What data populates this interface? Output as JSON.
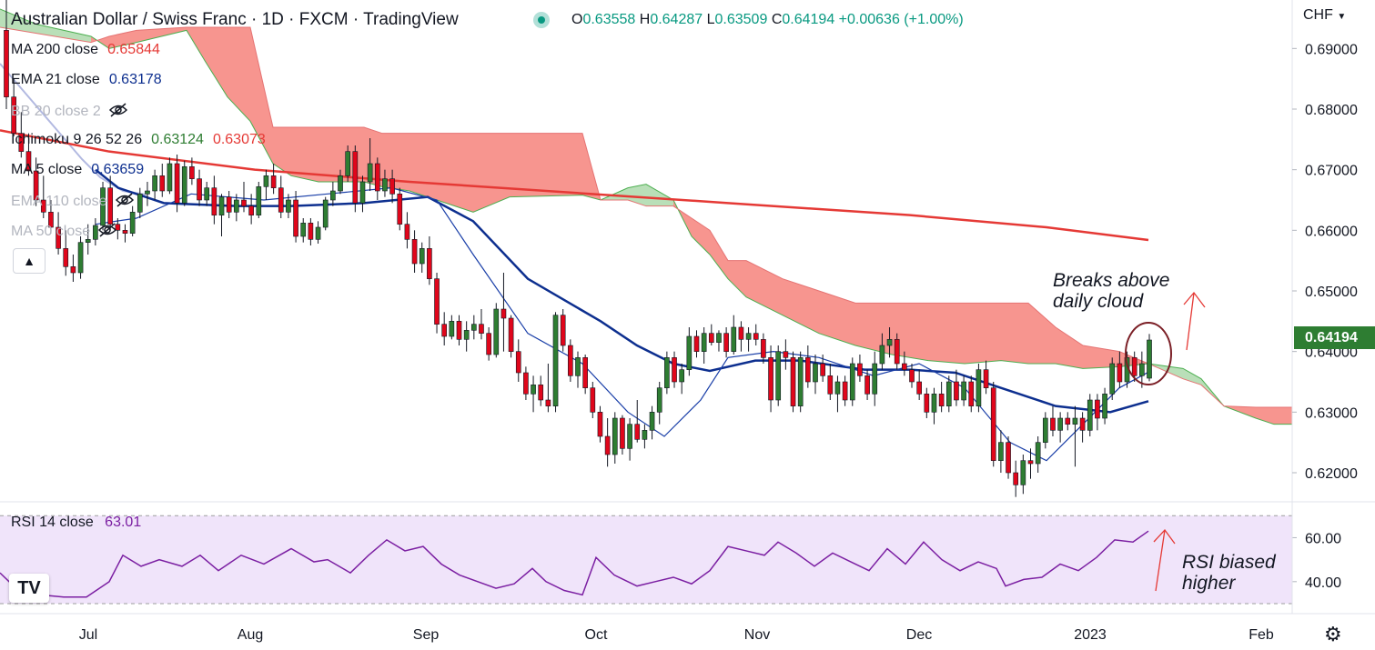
{
  "header": {
    "title": "Australian Dollar / Swiss Franc · 1D · FXCM · TradingView",
    "ohlc": {
      "open_label": "O",
      "open": "0.63558",
      "high_label": "H",
      "high": "0.64287",
      "low_label": "L",
      "low": "0.63509",
      "close_label": "C",
      "close": "0.64194",
      "change": "+0.00636 (+1.00%)"
    }
  },
  "legend": {
    "ma200": {
      "label": "MA 200 close",
      "value": "0.65844",
      "color": "#e53935"
    },
    "ema21": {
      "label": "EMA 21 close",
      "value": "0.63178",
      "color": "#0d2f8f"
    },
    "bb": {
      "label": "BB 20 close 2"
    },
    "ichimoku": {
      "label": "Ichimoku 9 26 52 26",
      "value1": "0.63124",
      "value2": "0.63073",
      "color1": "#2e7d32",
      "color2": "#e53935"
    },
    "ma5": {
      "label": "MA 5 close",
      "value": "0.63659",
      "color": "#0d2f8f"
    },
    "ema110": {
      "label": "EMA 110 close"
    },
    "ma50": {
      "label": "MA 50 close"
    }
  },
  "currency": "CHF",
  "price_tag": "0.64194",
  "annotations": {
    "cloud_line1": "Breaks above",
    "cloud_line2": "daily cloud",
    "rsi_line1": "RSI biased",
    "rsi_line2": "higher"
  },
  "rsi": {
    "label": "RSI 14 close",
    "value": "63.01",
    "color": "#7b1fa2"
  },
  "colors": {
    "bull": "#2e7d32",
    "bear": "#e0061b",
    "cloud_red": "#f7958f",
    "cloud_green": "#b9dfb8",
    "rsi_band": "#f0e4fa",
    "ellipse": "#7b1f26"
  },
  "chart_data": {
    "type": "candlestick",
    "price_axis": {
      "ticks": [
        0.62,
        0.63,
        0.64,
        0.65,
        0.66,
        0.67,
        0.68,
        0.69
      ],
      "tick_labels": [
        "0.62000",
        "0.63000",
        "0.64000",
        "0.65000",
        "0.66000",
        "0.67000",
        "0.68000",
        "0.69000"
      ],
      "range": [
        0.6155,
        0.698
      ]
    },
    "time_axis": {
      "labels": [
        "Jul",
        "Aug",
        "Sep",
        "Oct",
        "Nov",
        "Dec",
        "2023",
        "Feb"
      ]
    },
    "rsi_axis": {
      "ticks": [
        40,
        60
      ],
      "tick_labels": [
        "40.00",
        "60.00"
      ],
      "range": [
        30,
        73
      ]
    },
    "candles": [
      [
        0.693,
        0.6988,
        0.68,
        0.682
      ],
      [
        0.682,
        0.685,
        0.6755,
        0.676
      ],
      [
        0.676,
        0.6795,
        0.672,
        0.673
      ],
      [
        0.673,
        0.676,
        0.669,
        0.6698
      ],
      [
        0.6698,
        0.672,
        0.664,
        0.665
      ],
      [
        0.665,
        0.669,
        0.662,
        0.663
      ],
      [
        0.663,
        0.665,
        0.6595,
        0.6605
      ],
      [
        0.6605,
        0.663,
        0.656,
        0.657
      ],
      [
        0.657,
        0.66,
        0.6525,
        0.654
      ],
      [
        0.654,
        0.656,
        0.6515,
        0.653
      ],
      [
        0.653,
        0.659,
        0.652,
        0.658
      ],
      [
        0.658,
        0.661,
        0.656,
        0.6585
      ],
      [
        0.6585,
        0.662,
        0.6575,
        0.6608
      ],
      [
        0.6608,
        0.668,
        0.66,
        0.667
      ],
      [
        0.667,
        0.669,
        0.66,
        0.661
      ],
      [
        0.661,
        0.662,
        0.6585,
        0.66
      ],
      [
        0.66,
        0.661,
        0.658,
        0.6595
      ],
      [
        0.6595,
        0.664,
        0.659,
        0.663
      ],
      [
        0.663,
        0.667,
        0.662,
        0.666
      ],
      [
        0.666,
        0.668,
        0.664,
        0.6665
      ],
      [
        0.6665,
        0.67,
        0.665,
        0.669
      ],
      [
        0.669,
        0.671,
        0.6655,
        0.6665
      ],
      [
        0.6665,
        0.672,
        0.666,
        0.671
      ],
      [
        0.671,
        0.6725,
        0.663,
        0.6645
      ],
      [
        0.6645,
        0.6715,
        0.664,
        0.6705
      ],
      [
        0.6705,
        0.672,
        0.6675,
        0.6685
      ],
      [
        0.6685,
        0.67,
        0.664,
        0.665
      ],
      [
        0.665,
        0.668,
        0.664,
        0.667
      ],
      [
        0.667,
        0.669,
        0.661,
        0.6625
      ],
      [
        0.6625,
        0.666,
        0.659,
        0.6655
      ],
      [
        0.6655,
        0.6665,
        0.662,
        0.663
      ],
      [
        0.663,
        0.666,
        0.6615,
        0.665
      ],
      [
        0.665,
        0.668,
        0.663,
        0.664
      ],
      [
        0.664,
        0.666,
        0.661,
        0.6625
      ],
      [
        0.6625,
        0.668,
        0.662,
        0.6672
      ],
      [
        0.6672,
        0.67,
        0.665,
        0.669
      ],
      [
        0.669,
        0.671,
        0.666,
        0.667
      ],
      [
        0.667,
        0.669,
        0.662,
        0.663
      ],
      [
        0.663,
        0.666,
        0.662,
        0.665
      ],
      [
        0.665,
        0.6665,
        0.658,
        0.659
      ],
      [
        0.659,
        0.662,
        0.658,
        0.6612
      ],
      [
        0.6612,
        0.662,
        0.6575,
        0.6585
      ],
      [
        0.6585,
        0.6615,
        0.6578,
        0.6605
      ],
      [
        0.6605,
        0.6655,
        0.66,
        0.665
      ],
      [
        0.665,
        0.668,
        0.664,
        0.6665
      ],
      [
        0.6665,
        0.67,
        0.666,
        0.669
      ],
      [
        0.669,
        0.674,
        0.668,
        0.673
      ],
      [
        0.673,
        0.674,
        0.663,
        0.6645
      ],
      [
        0.6645,
        0.669,
        0.663,
        0.668
      ],
      [
        0.668,
        0.6752,
        0.6665,
        0.671
      ],
      [
        0.671,
        0.672,
        0.665,
        0.6665
      ],
      [
        0.6665,
        0.67,
        0.6655,
        0.6685
      ],
      [
        0.6685,
        0.67,
        0.6645,
        0.666
      ],
      [
        0.666,
        0.667,
        0.66,
        0.661
      ],
      [
        0.661,
        0.663,
        0.657,
        0.6585
      ],
      [
        0.6585,
        0.66,
        0.653,
        0.6545
      ],
      [
        0.6545,
        0.658,
        0.653,
        0.657
      ],
      [
        0.657,
        0.659,
        0.651,
        0.652
      ],
      [
        0.652,
        0.653,
        0.643,
        0.6445
      ],
      [
        0.6445,
        0.6465,
        0.641,
        0.6425
      ],
      [
        0.6425,
        0.646,
        0.642,
        0.645
      ],
      [
        0.645,
        0.646,
        0.641,
        0.642
      ],
      [
        0.642,
        0.645,
        0.64,
        0.6435
      ],
      [
        0.6435,
        0.646,
        0.642,
        0.6445
      ],
      [
        0.6445,
        0.647,
        0.642,
        0.643
      ],
      [
        0.643,
        0.644,
        0.6385,
        0.6395
      ],
      [
        0.6395,
        0.648,
        0.639,
        0.647
      ],
      [
        0.647,
        0.653,
        0.64,
        0.6455
      ],
      [
        0.6455,
        0.646,
        0.639,
        0.64
      ],
      [
        0.64,
        0.642,
        0.635,
        0.6365
      ],
      [
        0.6365,
        0.6375,
        0.632,
        0.633
      ],
      [
        0.633,
        0.636,
        0.63,
        0.6345
      ],
      [
        0.6345,
        0.636,
        0.631,
        0.632
      ],
      [
        0.632,
        0.638,
        0.63,
        0.631
      ],
      [
        0.631,
        0.6465,
        0.63,
        0.646
      ],
      [
        0.646,
        0.647,
        0.64,
        0.641
      ],
      [
        0.641,
        0.642,
        0.635,
        0.636
      ],
      [
        0.636,
        0.64,
        0.634,
        0.639
      ],
      [
        0.639,
        0.6395,
        0.633,
        0.634
      ],
      [
        0.634,
        0.635,
        0.629,
        0.63
      ],
      [
        0.63,
        0.631,
        0.625,
        0.626
      ],
      [
        0.626,
        0.629,
        0.621,
        0.623
      ],
      [
        0.623,
        0.63,
        0.6215,
        0.629
      ],
      [
        0.629,
        0.6295,
        0.623,
        0.624
      ],
      [
        0.624,
        0.629,
        0.622,
        0.628
      ],
      [
        0.628,
        0.632,
        0.625,
        0.6255
      ],
      [
        0.6255,
        0.628,
        0.624,
        0.627
      ],
      [
        0.627,
        0.631,
        0.6255,
        0.63
      ],
      [
        0.63,
        0.635,
        0.628,
        0.634
      ],
      [
        0.634,
        0.64,
        0.633,
        0.639
      ],
      [
        0.639,
        0.64,
        0.634,
        0.635
      ],
      [
        0.635,
        0.638,
        0.633,
        0.637
      ],
      [
        0.637,
        0.644,
        0.636,
        0.6425
      ],
      [
        0.6425,
        0.6435,
        0.639,
        0.64
      ],
      [
        0.64,
        0.644,
        0.638,
        0.643
      ],
      [
        0.643,
        0.6445,
        0.641,
        0.6415
      ],
      [
        0.6415,
        0.6435,
        0.64,
        0.643
      ],
      [
        0.643,
        0.644,
        0.639,
        0.64
      ],
      [
        0.64,
        0.646,
        0.6395,
        0.644
      ],
      [
        0.644,
        0.645,
        0.64,
        0.642
      ],
      [
        0.642,
        0.644,
        0.64,
        0.643
      ],
      [
        0.643,
        0.6445,
        0.641,
        0.642
      ],
      [
        0.642,
        0.643,
        0.638,
        0.639
      ],
      [
        0.639,
        0.641,
        0.63,
        0.632
      ],
      [
        0.632,
        0.641,
        0.631,
        0.64
      ],
      [
        0.64,
        0.642,
        0.637,
        0.639
      ],
      [
        0.639,
        0.64,
        0.63,
        0.631
      ],
      [
        0.631,
        0.64,
        0.63,
        0.639
      ],
      [
        0.639,
        0.641,
        0.634,
        0.635
      ],
      [
        0.635,
        0.6395,
        0.633,
        0.638
      ],
      [
        0.638,
        0.6395,
        0.635,
        0.636
      ],
      [
        0.636,
        0.638,
        0.632,
        0.633
      ],
      [
        0.633,
        0.636,
        0.63,
        0.635
      ],
      [
        0.635,
        0.636,
        0.631,
        0.632
      ],
      [
        0.632,
        0.639,
        0.631,
        0.638
      ],
      [
        0.638,
        0.6395,
        0.635,
        0.636
      ],
      [
        0.636,
        0.637,
        0.632,
        0.633
      ],
      [
        0.633,
        0.64,
        0.631,
        0.638
      ],
      [
        0.638,
        0.643,
        0.637,
        0.641
      ],
      [
        0.641,
        0.644,
        0.639,
        0.642
      ],
      [
        0.642,
        0.643,
        0.637,
        0.638
      ],
      [
        0.638,
        0.64,
        0.636,
        0.637
      ],
      [
        0.637,
        0.638,
        0.634,
        0.635
      ],
      [
        0.635,
        0.637,
        0.632,
        0.633
      ],
      [
        0.633,
        0.634,
        0.629,
        0.63
      ],
      [
        0.63,
        0.634,
        0.628,
        0.633
      ],
      [
        0.633,
        0.635,
        0.63,
        0.631
      ],
      [
        0.631,
        0.636,
        0.63,
        0.635
      ],
      [
        0.635,
        0.637,
        0.631,
        0.632
      ],
      [
        0.632,
        0.636,
        0.631,
        0.635
      ],
      [
        0.635,
        0.636,
        0.63,
        0.631
      ],
      [
        0.631,
        0.638,
        0.63,
        0.637
      ],
      [
        0.637,
        0.6385,
        0.633,
        0.634
      ],
      [
        0.634,
        0.635,
        0.621,
        0.622
      ],
      [
        0.622,
        0.627,
        0.62,
        0.625
      ],
      [
        0.625,
        0.626,
        0.619,
        0.62
      ],
      [
        0.62,
        0.622,
        0.616,
        0.618
      ],
      [
        0.618,
        0.623,
        0.6165,
        0.622
      ],
      [
        0.622,
        0.624,
        0.619,
        0.6215
      ],
      [
        0.6215,
        0.626,
        0.62,
        0.625
      ],
      [
        0.625,
        0.63,
        0.624,
        0.629
      ],
      [
        0.629,
        0.631,
        0.626,
        0.627
      ],
      [
        0.627,
        0.63,
        0.625,
        0.629
      ],
      [
        0.629,
        0.63,
        0.627,
        0.628
      ],
      [
        0.628,
        0.631,
        0.621,
        0.629
      ],
      [
        0.629,
        0.63,
        0.625,
        0.627
      ],
      [
        0.627,
        0.633,
        0.626,
        0.632
      ],
      [
        0.632,
        0.633,
        0.627,
        0.629
      ],
      [
        0.629,
        0.634,
        0.628,
        0.633
      ],
      [
        0.633,
        0.639,
        0.632,
        0.638
      ],
      [
        0.638,
        0.64,
        0.634,
        0.635
      ],
      [
        0.635,
        0.64,
        0.634,
        0.639
      ],
      [
        0.639,
        0.64,
        0.635,
        0.636
      ],
      [
        0.636,
        0.64,
        0.634,
        0.638
      ],
      [
        0.6356,
        0.6429,
        0.6351,
        0.6419
      ]
    ],
    "ma200": [
      [
        0,
        0.6765
      ],
      [
        120,
        0.673
      ],
      [
        280,
        0.67
      ],
      [
        450,
        0.668
      ],
      [
        650,
        0.666
      ],
      [
        800,
        0.6645
      ],
      [
        1000,
        0.6625
      ],
      [
        1150,
        0.6605
      ],
      [
        1262,
        0.6584
      ]
    ],
    "ema21": [
      [
        105,
        0.67
      ],
      [
        130,
        0.667
      ],
      [
        180,
        0.6645
      ],
      [
        260,
        0.664
      ],
      [
        320,
        0.664
      ],
      [
        400,
        0.6645
      ],
      [
        470,
        0.6655
      ],
      [
        520,
        0.6615
      ],
      [
        580,
        0.652
      ],
      [
        660,
        0.645
      ],
      [
        700,
        0.641
      ],
      [
        740,
        0.638
      ],
      [
        780,
        0.6368
      ],
      [
        830,
        0.6385
      ],
      [
        880,
        0.6385
      ],
      [
        950,
        0.637
      ],
      [
        1000,
        0.637
      ],
      [
        1050,
        0.6365
      ],
      [
        1100,
        0.634
      ],
      [
        1160,
        0.631
      ],
      [
        1220,
        0.63
      ],
      [
        1262,
        0.6318
      ]
    ],
    "ma5": [
      [
        105,
        0.661
      ],
      [
        150,
        0.662
      ],
      [
        210,
        0.666
      ],
      [
        290,
        0.665
      ],
      [
        360,
        0.666
      ],
      [
        430,
        0.667
      ],
      [
        480,
        0.665
      ],
      [
        520,
        0.656
      ],
      [
        580,
        0.643
      ],
      [
        640,
        0.638
      ],
      [
        690,
        0.63
      ],
      [
        730,
        0.626
      ],
      [
        770,
        0.632
      ],
      [
        800,
        0.639
      ],
      [
        850,
        0.64
      ],
      [
        900,
        0.639
      ],
      [
        960,
        0.636
      ],
      [
        1010,
        0.638
      ],
      [
        1060,
        0.634
      ],
      [
        1110,
        0.625
      ],
      [
        1150,
        0.622
      ],
      [
        1190,
        0.628
      ],
      [
        1230,
        0.634
      ],
      [
        1262,
        0.6366
      ]
    ],
    "rsi": [
      [
        0,
        44
      ],
      [
        20,
        36
      ],
      [
        45,
        34
      ],
      [
        70,
        33
      ],
      [
        95,
        33
      ],
      [
        120,
        40
      ],
      [
        135,
        52
      ],
      [
        155,
        47
      ],
      [
        175,
        50
      ],
      [
        200,
        47
      ],
      [
        220,
        52
      ],
      [
        240,
        45
      ],
      [
        265,
        52
      ],
      [
        290,
        48
      ],
      [
        320,
        55
      ],
      [
        345,
        49
      ],
      [
        360,
        50
      ],
      [
        385,
        44
      ],
      [
        405,
        52
      ],
      [
        425,
        59
      ],
      [
        445,
        54
      ],
      [
        465,
        56
      ],
      [
        485,
        48
      ],
      [
        505,
        43
      ],
      [
        525,
        40
      ],
      [
        545,
        37
      ],
      [
        565,
        39
      ],
      [
        585,
        46
      ],
      [
        600,
        40
      ],
      [
        620,
        36
      ],
      [
        640,
        34
      ],
      [
        655,
        51
      ],
      [
        675,
        43
      ],
      [
        700,
        38
      ],
      [
        720,
        40
      ],
      [
        740,
        42
      ],
      [
        760,
        39
      ],
      [
        780,
        45
      ],
      [
        800,
        56
      ],
      [
        820,
        54
      ],
      [
        840,
        52
      ],
      [
        855,
        58
      ],
      [
        875,
        53
      ],
      [
        895,
        47
      ],
      [
        915,
        53
      ],
      [
        935,
        49
      ],
      [
        955,
        45
      ],
      [
        975,
        55
      ],
      [
        995,
        48
      ],
      [
        1015,
        58
      ],
      [
        1035,
        50
      ],
      [
        1055,
        45
      ],
      [
        1075,
        49
      ],
      [
        1095,
        46
      ],
      [
        1105,
        38
      ],
      [
        1125,
        41
      ],
      [
        1145,
        42
      ],
      [
        1165,
        48
      ],
      [
        1185,
        45
      ],
      [
        1205,
        51
      ],
      [
        1225,
        59
      ],
      [
        1245,
        58
      ],
      [
        1262,
        63
      ]
    ]
  }
}
